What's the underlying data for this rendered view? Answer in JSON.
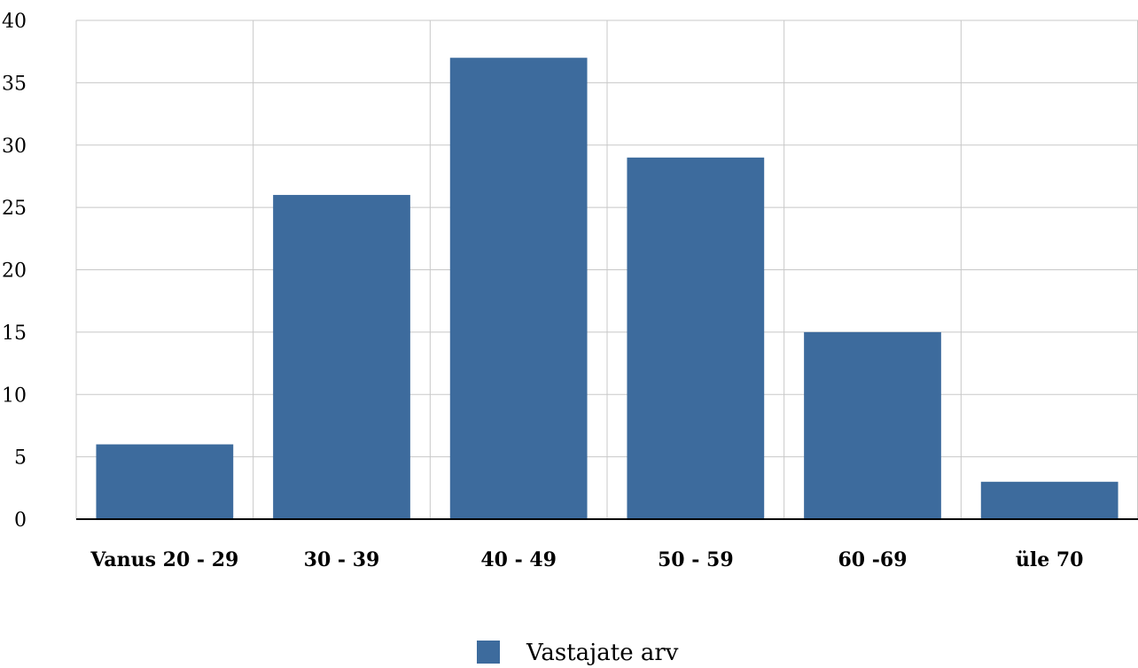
{
  "chart_data": {
    "type": "bar",
    "categories": [
      "Vanus 20 - 29",
      "30 - 39",
      "40 - 49",
      "50 - 59",
      "60 -69",
      "üle 70"
    ],
    "series": [
      {
        "name": "Vastajate arv",
        "values": [
          6,
          26,
          37,
          29,
          15,
          3
        ],
        "color": "#3d6b9d"
      }
    ],
    "yticks": [
      0,
      5,
      10,
      15,
      20,
      25,
      30,
      35,
      40
    ],
    "ylim": [
      0,
      40
    ],
    "grid": true,
    "legend_position": "bottom-center",
    "colors": {
      "bar": "#3d6b9d",
      "grid": "#c8c8c8",
      "axis": "#000000"
    }
  }
}
